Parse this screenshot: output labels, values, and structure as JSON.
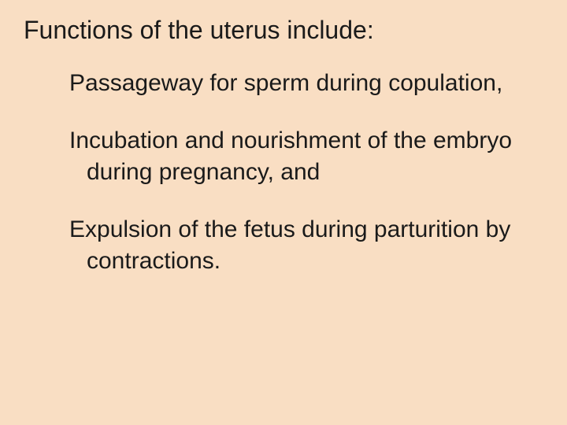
{
  "slide": {
    "background_color": "#f9dec3",
    "text_color": "#1a1a1a",
    "title": "Functions of the uterus include:",
    "title_fontsize": 32,
    "bullet_fontsize": 30,
    "bullet_glyph": "•",
    "bullets": [
      {
        "text": "Passageway for sperm during copulation,"
      },
      {
        "text": "Incubation and nourishment of the embryo during pregnancy, and"
      },
      {
        "text": "Expulsion of the fetus during parturition by contractions."
      }
    ]
  }
}
